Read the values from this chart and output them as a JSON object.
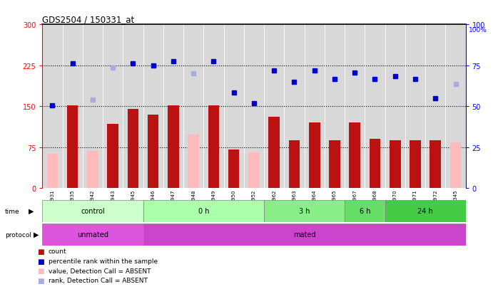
{
  "title": "GDS2504 / 150331_at",
  "samples": [
    "GSM112931",
    "GSM112935",
    "GSM112942",
    "GSM112943",
    "GSM112945",
    "GSM112946",
    "GSM112947",
    "GSM112948",
    "GSM112949",
    "GSM112950",
    "GSM112952",
    "GSM112962",
    "GSM112963",
    "GSM112964",
    "GSM112965",
    "GSM112967",
    "GSM112968",
    "GSM112970",
    "GSM112971",
    "GSM112972",
    "GSM113345"
  ],
  "count_values": [
    0,
    152,
    0,
    118,
    145,
    135,
    152,
    0,
    152,
    71,
    0,
    130,
    88,
    120,
    88,
    120,
    90,
    88,
    87,
    88,
    0
  ],
  "count_absent": [
    63,
    0,
    68,
    0,
    0,
    0,
    0,
    98,
    0,
    0,
    65,
    0,
    0,
    0,
    0,
    0,
    0,
    0,
    0,
    0,
    83
  ],
  "rank_values": [
    152,
    228,
    0,
    0,
    228,
    225,
    232,
    0,
    233,
    175,
    155,
    215,
    195,
    215,
    200,
    212,
    200,
    205,
    200,
    165,
    0
  ],
  "rank_absent": [
    0,
    0,
    162,
    220,
    0,
    0,
    0,
    210,
    0,
    0,
    0,
    0,
    0,
    0,
    0,
    0,
    0,
    0,
    0,
    0,
    190
  ],
  "time_groups": [
    {
      "label": "control",
      "start": 0,
      "end": 5,
      "color": "#ccffcc"
    },
    {
      "label": "0 h",
      "start": 5,
      "end": 11,
      "color": "#aaffaa"
    },
    {
      "label": "3 h",
      "start": 11,
      "end": 15,
      "color": "#88ee88"
    },
    {
      "label": "6 h",
      "start": 15,
      "end": 17,
      "color": "#66dd66"
    },
    {
      "label": "24 h",
      "start": 17,
      "end": 21,
      "color": "#44cc44"
    }
  ],
  "protocol_groups": [
    {
      "label": "unmated",
      "start": 0,
      "end": 5,
      "color": "#dd55dd"
    },
    {
      "label": "mated",
      "start": 5,
      "end": 21,
      "color": "#cc44cc"
    }
  ],
  "ylim_left": [
    0,
    300
  ],
  "ylim_right": [
    0,
    100
  ],
  "yticks_left": [
    0,
    75,
    150,
    225,
    300
  ],
  "yticks_right": [
    0,
    25,
    50,
    75,
    100
  ],
  "bar_color_count": "#bb1111",
  "bar_color_absent": "#ffbbbb",
  "dot_color_rank": "#0000cc",
  "dot_color_rank_absent": "#aaaadd",
  "col_bg_color": "#d8d8d8",
  "background_color": "#ffffff"
}
